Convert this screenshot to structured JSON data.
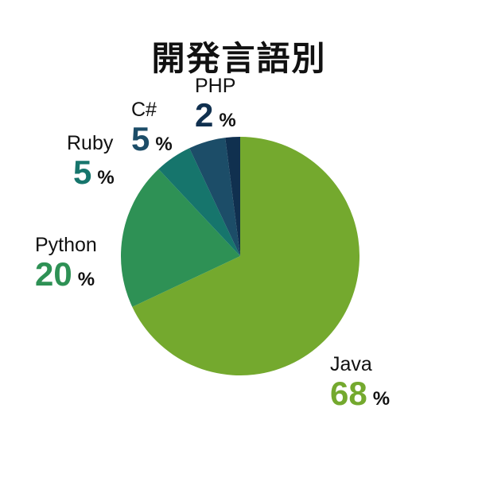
{
  "chart_data": {
    "type": "pie",
    "title": "開発言語別",
    "categories": [
      "Java",
      "Python",
      "Ruby",
      "C#",
      "PHP"
    ],
    "values": [
      68,
      20,
      5,
      5,
      2
    ],
    "unit": "%",
    "colors": [
      "#74a92e",
      "#2e9155",
      "#16756c",
      "#1c4d68",
      "#10304f"
    ],
    "label_text_color": "#111111",
    "background_color": "#ffffff",
    "start_angle_deg": 0,
    "direction": "clockwise",
    "legend": "none",
    "labels_position": "outside"
  }
}
